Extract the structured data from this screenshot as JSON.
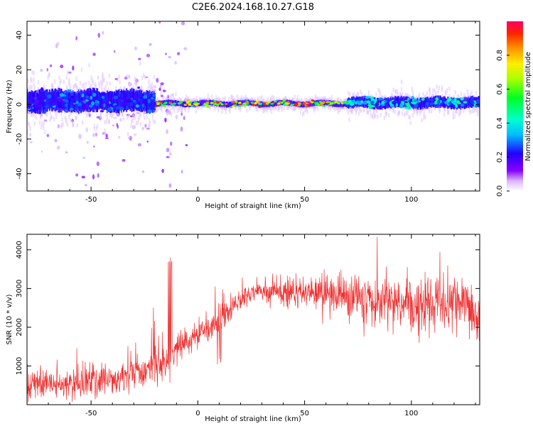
{
  "figure": {
    "title": "C2E6.2024.168.10.27.G18"
  },
  "chart_data": [
    {
      "type": "heatmap",
      "xlabel": "Height of straight line (km)",
      "ylabel": "Frequency (Hz)",
      "xlim": [
        -80,
        132
      ],
      "ylim": [
        -50,
        48
      ],
      "xticks": [
        -50,
        0,
        50,
        100
      ],
      "yticks": [
        -40,
        -20,
        0,
        20,
        40
      ],
      "grid": false,
      "colorbar": {
        "label": "Normalized spectral amplitude",
        "range": [
          0.0,
          1.0
        ],
        "ticks": [
          0.0,
          0.2,
          0.4,
          0.6,
          0.8
        ],
        "colormap": "gist_rainbow_r"
      },
      "description_series": [
        {
          "x_range": [
            -80,
            -20
          ],
          "center_hz": 2,
          "spread_hz": 8,
          "amplitude": 0.3
        },
        {
          "x_range": [
            -20,
            70
          ],
          "center_hz": 0.5,
          "spread_hz": 2,
          "amplitude": 0.9
        },
        {
          "x_range": [
            70,
            132
          ],
          "center_hz": 1,
          "spread_hz": 4,
          "amplitude": 0.45
        }
      ]
    },
    {
      "type": "line",
      "xlabel": "Height of straight line (km)",
      "ylabel": "SNR (10 * v/v)",
      "xlim": [
        -80,
        132
      ],
      "ylim": [
        0,
        4400
      ],
      "xticks": [
        -50,
        0,
        50,
        100
      ],
      "yticks": [
        1000,
        2000,
        3000,
        4000
      ],
      "grid": false,
      "color": "#ee3333",
      "trend": {
        "x": [
          -80,
          -60,
          -45,
          -35,
          -25,
          -15,
          -10,
          -5,
          0,
          5,
          10,
          15,
          20,
          25,
          30,
          40,
          50,
          60,
          70,
          80,
          90,
          100,
          110,
          120,
          128,
          132
        ],
        "y": [
          550,
          500,
          650,
          700,
          900,
          1100,
          1400,
          1600,
          1850,
          2000,
          2150,
          2450,
          2700,
          2900,
          2950,
          2950,
          2880,
          2850,
          2800,
          2700,
          2650,
          2600,
          2600,
          2550,
          2500,
          2100
        ]
      },
      "noise": {
        "x": [
          -80,
          -20,
          20,
          70,
          132
        ],
        "amplitude": [
          350,
          450,
          250,
          550,
          650
        ]
      }
    }
  ]
}
